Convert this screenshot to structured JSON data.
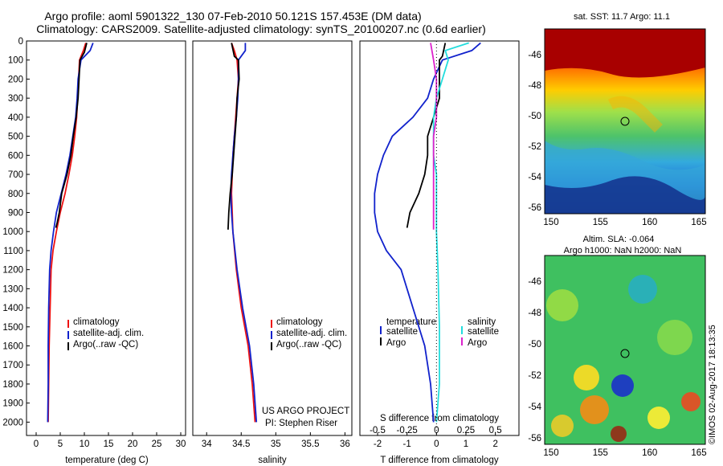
{
  "header": {
    "line1": "Argo profile: aoml 5901322_130 07-Feb-2010 50.121S 157.453E (DM data)",
    "line2": "Climatology: CARS2009. Satellite-adjusted climatology: synTS_20100207.nc (0.6d earlier)"
  },
  "colors": {
    "climatology": "#ee1111",
    "satellite": "#1122cc",
    "argo": "#000000",
    "sat_salinity": "#22dddd",
    "argo_salinity": "#dd22cc"
  },
  "legend": {
    "entries": [
      "climatology",
      "satellite-adj. clim.",
      "Argo(..raw -QC)"
    ],
    "diff_temperature": "temperature",
    "diff_salinity": "salinity",
    "diff_entries": [
      "satellite",
      "Argo"
    ]
  },
  "credits": {
    "project": "US ARGO PROJECT",
    "pi": "PI: Stephen Riser",
    "watermark": "©IMOS 02-Aug-2017 18:13:35"
  },
  "chart_data": [
    {
      "type": "line",
      "xlabel": "temperature (deg C)",
      "xlim": [
        -2,
        31
      ],
      "ylim": [
        2070,
        0
      ],
      "xticks": [
        "0",
        "5",
        "10",
        "15",
        "20",
        "25",
        "30"
      ],
      "yticks": [
        "0",
        "100",
        "200",
        "300",
        "400",
        "500",
        "600",
        "700",
        "800",
        "900",
        "1000",
        "1100",
        "1200",
        "1300",
        "1400",
        "1500",
        "1600",
        "1700",
        "1800",
        "1900",
        "2000"
      ],
      "series": [
        {
          "name": "climatology",
          "x": [
            10.3,
            9.8,
            9.0,
            8.8,
            8.6,
            8.4,
            8.0,
            7.5,
            6.8,
            6.0,
            5.0,
            4.2,
            3.5,
            3.1,
            2.9,
            2.7,
            2.6,
            2.5
          ],
          "y": [
            10,
            50,
            100,
            200,
            300,
            400,
            500,
            600,
            700,
            800,
            900,
            1000,
            1100,
            1200,
            1400,
            1600,
            1800,
            2000
          ]
        },
        {
          "name": "satellite-adj. clim.",
          "x": [
            11.8,
            11.2,
            9.3,
            8.7,
            8.5,
            8.2,
            7.6,
            7.0,
            6.2,
            5.2,
            4.2,
            3.6,
            3.1,
            2.8,
            2.6,
            2.5,
            2.5,
            2.4
          ],
          "y": [
            10,
            50,
            100,
            200,
            300,
            400,
            500,
            600,
            700,
            800,
            900,
            1000,
            1100,
            1200,
            1400,
            1600,
            1800,
            2000
          ]
        },
        {
          "name": "Argo(..raw -QC)",
          "x": [
            10.5,
            10.0,
            9.1,
            8.9,
            8.7,
            8.3,
            7.7,
            7.2,
            6.4,
            5.3,
            4.8,
            4.4,
            4.1
          ],
          "y": [
            10,
            60,
            100,
            200,
            300,
            400,
            500,
            600,
            700,
            800,
            900,
            950,
            980
          ]
        }
      ]
    },
    {
      "type": "line",
      "xlabel": "salinity",
      "xlim": [
        33.8,
        36.1
      ],
      "ylim": [
        2070,
        0
      ],
      "xticks": [
        "34",
        "34.5",
        "35",
        "35.5",
        "36"
      ],
      "series": [
        {
          "name": "climatology",
          "x": [
            34.36,
            34.4,
            34.44,
            34.46,
            34.44,
            34.42,
            34.4,
            34.38,
            34.37,
            34.36,
            34.37,
            34.38,
            34.43,
            34.5,
            34.6,
            34.66,
            34.7
          ],
          "y": [
            10,
            50,
            100,
            200,
            300,
            400,
            500,
            600,
            700,
            800,
            900,
            1000,
            1200,
            1400,
            1600,
            1800,
            2000
          ]
        },
        {
          "name": "satellite-adj. clim.",
          "x": [
            34.56,
            34.56,
            34.46,
            34.46,
            34.45,
            34.43,
            34.4,
            34.38,
            34.36,
            34.35,
            34.36,
            34.38,
            34.44,
            34.52,
            34.62,
            34.68,
            34.72
          ],
          "y": [
            10,
            50,
            100,
            200,
            300,
            400,
            500,
            600,
            700,
            800,
            900,
            1000,
            1200,
            1400,
            1600,
            1800,
            2000
          ]
        },
        {
          "name": "Argo(..raw -QC)",
          "x": [
            34.36,
            34.4,
            34.46,
            34.47,
            34.44,
            34.43,
            34.41,
            34.39,
            34.37,
            34.34,
            34.32,
            34.31
          ],
          "y": [
            10,
            80,
            100,
            200,
            300,
            400,
            500,
            600,
            700,
            800,
            900,
            990
          ]
        }
      ]
    },
    {
      "type": "line",
      "xlabel": "T difference from climatology",
      "xlabel2": "S difference from climatology",
      "xlim": [
        -2.6,
        2.8
      ],
      "ylim": [
        2070,
        0
      ],
      "xticks": [
        "-2",
        "-1",
        "0",
        "1",
        "2"
      ],
      "xticks2": [
        "-0.5",
        "-0.25",
        "0",
        "0.25",
        "0.5"
      ],
      "series": [
        {
          "name": "temperature satellite",
          "x": [
            1.5,
            1.2,
            0.2,
            -0.1,
            -0.3,
            -0.8,
            -1.5,
            -1.8,
            -2.0,
            -2.1,
            -2.1,
            -2.0,
            -1.7,
            -1.2,
            -0.8,
            -0.4,
            -0.2,
            -0.1
          ],
          "y": [
            10,
            50,
            100,
            200,
            300,
            400,
            500,
            600,
            700,
            800,
            900,
            1000,
            1100,
            1200,
            1400,
            1600,
            1800,
            2000
          ]
        },
        {
          "name": "temperature Argo",
          "x": [
            0.3,
            0.2,
            0.1,
            0.1,
            0.1,
            -0.1,
            -0.3,
            -0.3,
            -0.4,
            -0.6,
            -0.9,
            -1.0
          ],
          "y": [
            10,
            80,
            100,
            200,
            300,
            400,
            500,
            600,
            700,
            800,
            900,
            980
          ]
        },
        {
          "name": "salinity satellite",
          "x": [
            1.1,
            0.3,
            0.4,
            0.2,
            0.0,
            -0.1,
            -0.1,
            -0.1,
            0.0,
            0.0,
            0.0,
            0.05,
            0.1,
            0.1,
            0.0
          ],
          "y": [
            10,
            50,
            100,
            200,
            300,
            400,
            500,
            600,
            700,
            800,
            1000,
            1200,
            1500,
            1800,
            2000
          ]
        },
        {
          "name": "salinity Argo",
          "x": [
            -0.2,
            -0.1,
            0.0,
            0.0,
            0.0,
            -0.1,
            -0.1,
            -0.1,
            -0.1,
            -0.1,
            -0.1
          ],
          "y": [
            10,
            100,
            200,
            300,
            400,
            500,
            600,
            700,
            800,
            900,
            990
          ]
        }
      ]
    },
    {
      "type": "heatmap",
      "title": "sat. SST: 11.7 Argo: 11.1",
      "xticks": [
        "150",
        "155",
        "160",
        "165"
      ],
      "yticks": [
        "-46",
        "-48",
        "-50",
        "-52",
        "-54",
        "-56"
      ]
    },
    {
      "type": "heatmap",
      "title": "Altim. SLA: -0.064",
      "subtitle": "Argo h1000: NaN h2000: NaN",
      "xticks": [
        "150",
        "155",
        "160",
        "165"
      ],
      "yticks": [
        "-46",
        "-48",
        "-50",
        "-52",
        "-54",
        "-56"
      ]
    }
  ]
}
